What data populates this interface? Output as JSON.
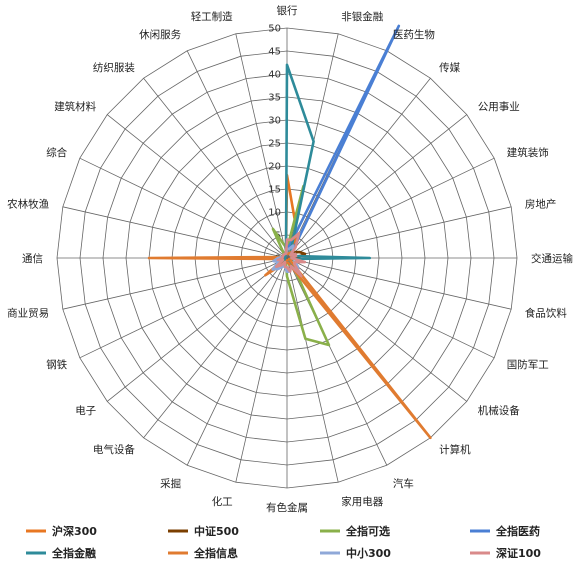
{
  "chart_data": {
    "type": "radar",
    "title": "",
    "categories": [
      "银行",
      "非银金融",
      "医药生物",
      "传媒",
      "公用事业",
      "建筑装饰",
      "房地产",
      "交通运输",
      "食品饮料",
      "国防军工",
      "机械设备",
      "计算机",
      "汽车",
      "家用电器",
      "有色金属",
      "化工",
      "采掘",
      "电气设备",
      "电子",
      "钢铁",
      "商业贸易",
      "通信",
      "农林牧渔",
      "综合",
      "建筑材料",
      "纺织服装",
      "休闲服务",
      "轻工制造"
    ],
    "r_ticks": [
      "0",
      "5",
      "10",
      "15",
      "20",
      "25",
      "30",
      "35",
      "40",
      "45",
      "50"
    ],
    "r_max": 50,
    "grid": true,
    "legend_position": "bottom",
    "series": [
      {
        "name": "沪深300",
        "color": "#E87722",
        "values": [
          18,
          8,
          4,
          1,
          1,
          1,
          2,
          1,
          1,
          0.5,
          1,
          2,
          1,
          1,
          0.5,
          1,
          0.5,
          1,
          2,
          1,
          1,
          0.5,
          0.5,
          0.5,
          0.5,
          0.5,
          0.5,
          1
        ]
      },
      {
        "name": "中证500",
        "color": "#7B3F00",
        "values": [
          2,
          2,
          2,
          2,
          2,
          3,
          4,
          2,
          1,
          1,
          1,
          2,
          2,
          1,
          1,
          1,
          1,
          1,
          2,
          1,
          1,
          0.5,
          0.5,
          0.5,
          0.5,
          0.5,
          1,
          1
        ]
      },
      {
        "name": "全指可选",
        "color": "#8AB04A",
        "values": [
          2,
          16,
          2,
          1,
          1,
          1,
          1,
          1,
          1,
          1,
          1,
          2,
          21,
          18,
          4,
          1,
          1,
          1,
          1,
          0.5,
          1,
          15,
          1,
          1,
          1,
          1,
          7,
          3
        ]
      },
      {
        "name": "全指医药",
        "color": "#4A7FD4",
        "values": [
          2,
          3,
          56,
          2,
          1,
          1,
          1,
          1,
          1,
          1,
          1,
          2,
          1,
          1,
          1,
          1,
          1,
          1,
          1,
          0.5,
          1,
          0.5,
          0.5,
          0.5,
          0.5,
          0.5,
          1,
          1
        ]
      },
      {
        "name": "全指金融",
        "color": "#2E8B9A",
        "values": [
          42,
          26,
          2,
          1,
          1,
          1,
          2,
          18,
          1,
          1,
          1,
          2,
          1,
          1,
          1,
          1,
          1,
          1,
          1,
          0.5,
          1,
          0.5,
          0.5,
          0.5,
          0.5,
          0.5,
          1,
          1
        ]
      },
      {
        "name": "全指信息",
        "color": "#E07B30",
        "values": [
          1,
          1,
          1,
          2,
          1,
          1,
          1,
          1,
          1,
          1,
          1,
          50,
          2,
          1,
          1,
          1,
          1,
          2,
          6,
          1,
          1,
          30,
          1,
          1,
          1,
          1,
          1,
          1
        ]
      },
      {
        "name": "中小300",
        "color": "#8FA8D8",
        "values": [
          2,
          2,
          3,
          2,
          1,
          2,
          2,
          1,
          2,
          2,
          3,
          4,
          2,
          3,
          3,
          2,
          2,
          3,
          4,
          2,
          3,
          2,
          1,
          1,
          1,
          1,
          1,
          1
        ]
      },
      {
        "name": "深证100",
        "color": "#D98A8A",
        "values": [
          4,
          4,
          6,
          3,
          1,
          2,
          2,
          1,
          4,
          2,
          2,
          5,
          2,
          3,
          2,
          2,
          1,
          2,
          3,
          1,
          2,
          1,
          1,
          1,
          1,
          1,
          1,
          1
        ]
      }
    ]
  }
}
